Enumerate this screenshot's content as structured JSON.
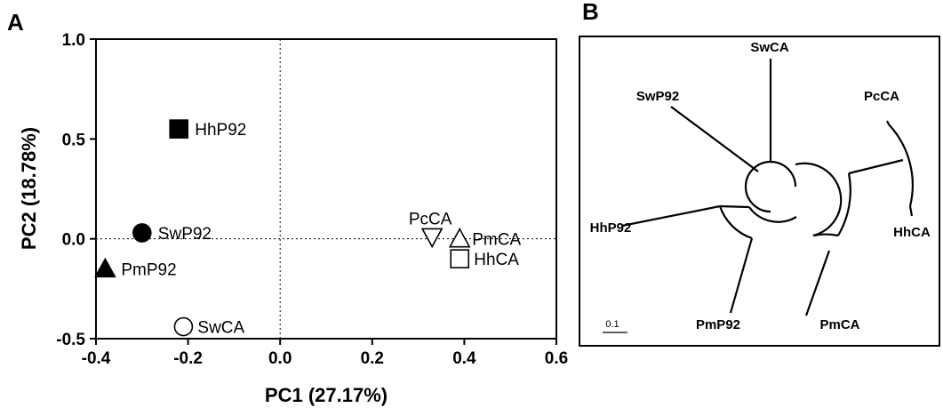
{
  "panels": {
    "a_label": "A",
    "b_label": "B"
  },
  "chart_data": [
    {
      "type": "scatter",
      "title": "",
      "xlabel": "PC1 (27.17%)",
      "ylabel": "PC2 (18.78%)",
      "xlim": [
        -0.4,
        0.6
      ],
      "ylim": [
        -0.5,
        1.0
      ],
      "xticks": [
        "-0.4",
        "-0.2",
        "0.0",
        "0.2",
        "0.4",
        "0.6"
      ],
      "yticks": [
        "-0.5",
        "0.0",
        "0.5",
        "1.0"
      ],
      "grid": false,
      "reference_lines": {
        "x": 0.0,
        "y": 0.0,
        "style": "dotted"
      },
      "points": [
        {
          "label": "HhP92",
          "x": -0.22,
          "y": 0.55,
          "marker": "square",
          "filled": true
        },
        {
          "label": "SwP92",
          "x": -0.3,
          "y": 0.03,
          "marker": "circle",
          "filled": true
        },
        {
          "label": "PmP92",
          "x": -0.38,
          "y": -0.15,
          "marker": "triangle-up",
          "filled": true
        },
        {
          "label": "SwCA",
          "x": -0.21,
          "y": -0.44,
          "marker": "circle",
          "filled": false
        },
        {
          "label": "PcCA",
          "x": 0.33,
          "y": 0.01,
          "marker": "triangle-down",
          "filled": false
        },
        {
          "label": "PmCA",
          "x": 0.39,
          "y": 0.0,
          "marker": "triangle-up",
          "filled": false
        },
        {
          "label": "HhCA",
          "x": 0.39,
          "y": -0.1,
          "marker": "square",
          "filled": false
        }
      ]
    },
    {
      "type": "tree",
      "title": "",
      "leaves": [
        "SwCA",
        "SwP92",
        "PcCA",
        "HhP92",
        "HhCA",
        "PmP92",
        "PmCA"
      ],
      "scale_bar_label": "0.1"
    }
  ]
}
